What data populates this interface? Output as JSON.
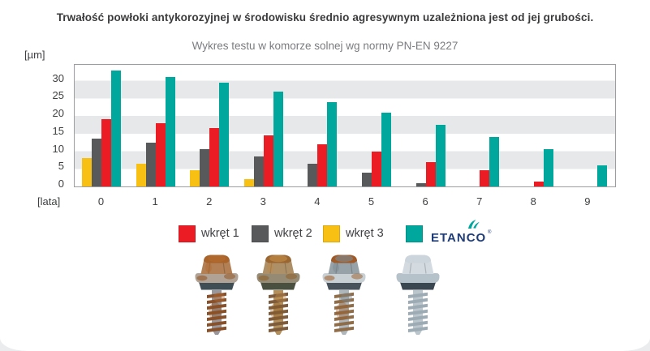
{
  "title": "Trwałość powłoki antykorozyjnej w środowisku średnio agresywnym uzależniona jest od jej grubości.",
  "subtitle": "Wykres testu w komorze solnej wg normy PN-EN 9227",
  "chart_data": {
    "type": "bar",
    "title": "Trwałość powłoki antykorozyjnej w środowisku średnio agresywnym uzależniona jest od jej grubości.",
    "subtitle": "Wykres testu w komorze solnej wg normy PN-EN 9227",
    "y_unit_label": "[µm]",
    "x_unit_label": "[lata]",
    "categories": [
      "0",
      "1",
      "2",
      "3",
      "4",
      "5",
      "6",
      "7",
      "8",
      "9"
    ],
    "y_ticks": [
      0,
      5,
      10,
      15,
      20,
      25,
      30
    ],
    "ylim": [
      0,
      34.5
    ],
    "grid": "horizontal gray bands over 5–10, 15–20, 25–30 µm",
    "bar_order_in_group": [
      "wkręt 3",
      "wkręt 2",
      "wkręt 1",
      "ETANCO"
    ],
    "legend_position": "bottom",
    "series": [
      {
        "name": "wkręt 1",
        "color": "#EC1C24",
        "values": [
          19,
          18,
          16.5,
          14.5,
          12,
          10,
          7,
          4.5,
          1.5,
          0
        ]
      },
      {
        "name": "wkręt 2",
        "color": "#58595B",
        "values": [
          13.5,
          12.5,
          10.5,
          8.5,
          6.5,
          4,
          1,
          0,
          0,
          0
        ]
      },
      {
        "name": "wkręt 3",
        "color": "#F8C013",
        "values": [
          8,
          6.5,
          4.5,
          2,
          0,
          0,
          0,
          0,
          0,
          0
        ]
      },
      {
        "name": "ETANCO",
        "color": "#00A79D",
        "values": [
          33,
          31,
          29.5,
          27,
          24,
          21,
          17.5,
          14,
          10.5,
          6
        ]
      }
    ]
  },
  "legend": {
    "items": [
      {
        "label": "wkręt 1",
        "color": "#EC1C24"
      },
      {
        "label": "wkręt 2",
        "color": "#58595B"
      },
      {
        "label": "wkręt 3",
        "color": "#F8C013"
      },
      {
        "label": "ETANCO",
        "color": "#00A79D",
        "mark": "®"
      }
    ]
  },
  "brand": {
    "etanco_navy": "#1F3C77",
    "etanco_teal": "#00A79D"
  },
  "screws": {
    "items": [
      {
        "name": "screw-photo-1",
        "condition": "corroded",
        "palette": {
          "head_top": "#a9642b",
          "head_side": "#b28054",
          "washer": "#b0a294",
          "gasket": "#3f4d55",
          "shank": "#99979b",
          "thread": "#89512a",
          "rust": "#8f4f1e",
          "rust2": "#b46a2d"
        }
      },
      {
        "name": "screw-photo-2",
        "condition": "corroded",
        "palette": {
          "head_top": "#9a6733",
          "head_side": "#ad9068",
          "washer": "#958b74",
          "gasket": "#49503f",
          "shank": "#b3905b",
          "thread": "#7d5b3b",
          "rust": "#8f5c22",
          "rust2": "#c08a45"
        }
      },
      {
        "name": "screw-photo-3",
        "condition": "corroded",
        "palette": {
          "head_top": "#a05a27",
          "head_side": "#97a2a8",
          "washer": "#c9d0d4",
          "gasket": "#47525a",
          "shank": "#aeb7bc",
          "thread": "#8f6d49",
          "rust": "#9a5a26",
          "rust2": "#7b8890"
        }
      },
      {
        "name": "screw-photo-4",
        "condition": "clean",
        "palette": {
          "head_top": "#ccd5db",
          "head_side": "#d3dbe1",
          "washer": "#b6c2ca",
          "gasket": "#3b4750",
          "shank": "#bac5cc",
          "thread": "#9dabb5"
        }
      }
    ]
  }
}
